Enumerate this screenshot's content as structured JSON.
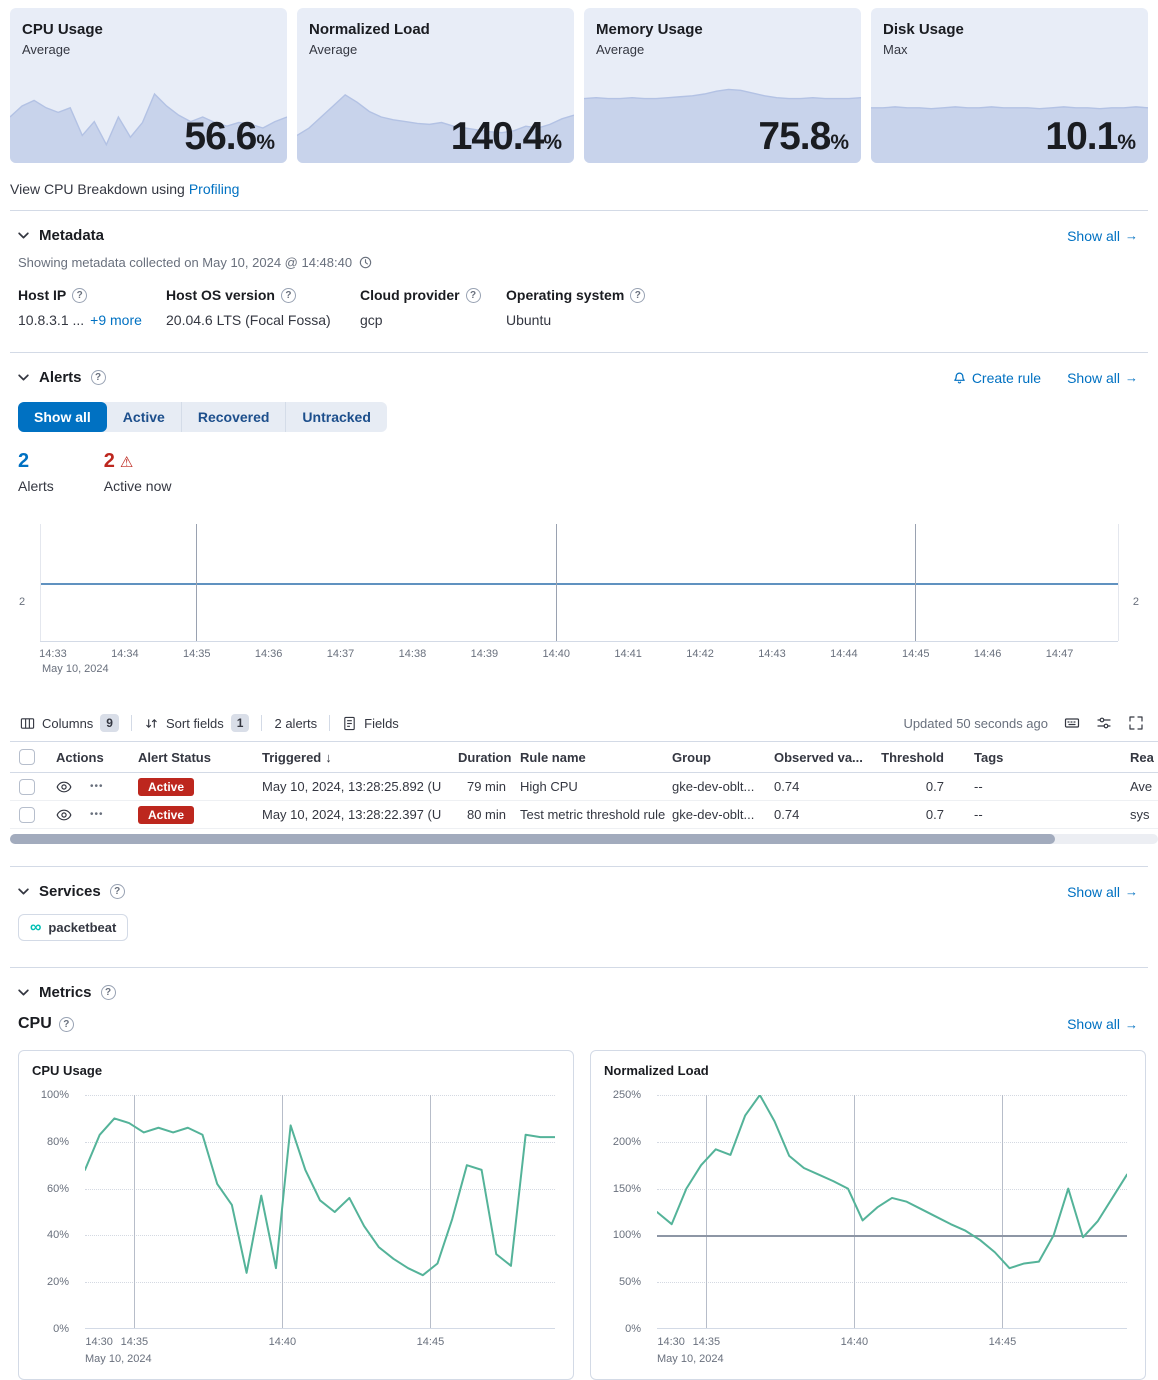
{
  "colors": {
    "primary": "#0071c2",
    "danger": "#bd271e",
    "vis_teal": "#54b399",
    "vis_blue": "#6092c0",
    "card_bg": "#e8edf7",
    "card_area": "#c8d3eb",
    "card_area_edge": "#b3c2e4"
  },
  "icons": {
    "question": "?",
    "arrow_right": "→",
    "sort_down": "↓",
    "warning": "⚠",
    "dots": "•••",
    "infinity": "∞"
  },
  "kpi_cards": [
    {
      "title": "CPU Usage",
      "subtitle": "Average",
      "value": "56.6",
      "unit": "%",
      "spark": [
        0.5,
        0.62,
        0.68,
        0.6,
        0.55,
        0.6,
        0.3,
        0.45,
        0.2,
        0.5,
        0.28,
        0.44,
        0.75,
        0.62,
        0.52,
        0.45,
        0.5,
        0.44,
        0.4,
        0.44,
        0.42,
        0.38,
        0.45,
        0.5
      ]
    },
    {
      "title": "Normalized Load",
      "subtitle": "Average",
      "value": "140.4",
      "unit": "%",
      "spark": [
        0.3,
        0.38,
        0.5,
        0.62,
        0.74,
        0.66,
        0.56,
        0.5,
        0.47,
        0.45,
        0.43,
        0.42,
        0.44,
        0.4,
        0.38,
        0.36,
        0.34,
        0.33,
        0.35,
        0.4,
        0.38,
        0.42,
        0.48,
        0.52
      ]
    },
    {
      "title": "Memory Usage",
      "subtitle": "Average",
      "value": "75.8",
      "unit": "%",
      "spark": [
        0.7,
        0.71,
        0.7,
        0.7,
        0.71,
        0.7,
        0.7,
        0.71,
        0.72,
        0.73,
        0.75,
        0.78,
        0.8,
        0.79,
        0.76,
        0.73,
        0.71,
        0.7,
        0.7,
        0.71,
        0.7,
        0.7,
        0.7,
        0.71
      ]
    },
    {
      "title": "Disk Usage",
      "subtitle": "Max",
      "value": "10.1",
      "unit": "%",
      "spark": [
        0.6,
        0.6,
        0.61,
        0.6,
        0.6,
        0.59,
        0.6,
        0.61,
        0.6,
        0.6,
        0.61,
        0.6,
        0.6,
        0.6,
        0.59,
        0.6,
        0.61,
        0.6,
        0.6,
        0.59,
        0.6,
        0.6,
        0.61,
        0.6
      ]
    }
  ],
  "profiling": {
    "prefix": "View CPU Breakdown using",
    "link": "Profiling"
  },
  "metadata": {
    "title": "Metadata",
    "show_all": "Show all",
    "note": "Showing metadata collected on May 10, 2024 @ 14:48:40",
    "fields": [
      {
        "label": "Host IP",
        "value": "10.8.3.1 ...",
        "more": "+9 more"
      },
      {
        "label": "Host OS version",
        "value": "20.04.6 LTS (Focal Fossa)"
      },
      {
        "label": "Cloud provider",
        "value": "gcp"
      },
      {
        "label": "Operating system",
        "value": "Ubuntu"
      }
    ]
  },
  "alerts": {
    "title": "Alerts",
    "create_rule": "Create rule",
    "show_all": "Show all",
    "tabs": [
      "Show all",
      "Active",
      "Recovered",
      "Untracked"
    ],
    "active_tab": "Show all",
    "stats": {
      "alerts_count": "2",
      "alerts_label": "Alerts",
      "active_count": "2",
      "active_label": "Active now"
    },
    "toolbar": {
      "columns": "Columns",
      "columns_badge": "9",
      "sort": "Sort fields",
      "sort_badge": "1",
      "count": "2 alerts",
      "fields": "Fields",
      "updated": "Updated 50 seconds ago"
    },
    "table": {
      "headers": [
        "Actions",
        "Alert Status",
        "Triggered",
        "Duration",
        "Rule name",
        "Group",
        "Observed va...",
        "Threshold",
        "Tags",
        "Rea"
      ],
      "rows": [
        {
          "status": "Active",
          "triggered": "May 10, 2024, 13:28:25.892 (U",
          "duration": "79 min",
          "rule": "High CPU",
          "group": "gke-dev-oblt...",
          "observed": "0.74",
          "threshold": "0.7",
          "tags": "--",
          "reason": "Ave"
        },
        {
          "status": "Active",
          "triggered": "May 10, 2024, 13:28:22.397 (U",
          "duration": "80 min",
          "rule": "Test metric threshold rule",
          "group": "gke-dev-oblt...",
          "observed": "0.74",
          "threshold": "0.7",
          "tags": "--",
          "reason": "sys"
        }
      ]
    }
  },
  "services": {
    "title": "Services",
    "show_all": "Show all",
    "items": [
      {
        "label": "packetbeat"
      }
    ]
  },
  "metrics": {
    "title": "Metrics",
    "subsection": "CPU",
    "show_all": "Show all"
  },
  "chart_data": [
    {
      "type": "line",
      "name": "alerts-occurrence-timeline",
      "values": [
        2,
        2
      ],
      "ylim": [
        0,
        4
      ],
      "y_axis_label": "2",
      "x_ticks": [
        "14:33",
        "14:34",
        "14:35",
        "14:36",
        "14:37",
        "14:38",
        "14:39",
        "14:40",
        "14:41",
        "14:42",
        "14:43",
        "14:44",
        "14:45",
        "14:46",
        "14:47"
      ],
      "date_label": "May 10, 2024",
      "gridlines": [
        {
          "pos": 0,
          "strong": false
        },
        {
          "pos": 0.145,
          "strong": true
        },
        {
          "pos": 0.479,
          "strong": true
        },
        {
          "pos": 0.812,
          "strong": true
        },
        {
          "pos": 1,
          "strong": false
        }
      ],
      "line_color": "#6092c0",
      "legend_position": "none",
      "grid": true
    },
    {
      "type": "line",
      "title": "CPU Usage",
      "ylabel": "%",
      "ylim": [
        0,
        100
      ],
      "y_ticks": [
        {
          "label": "0%",
          "value": 0
        },
        {
          "label": "20%",
          "value": 20
        },
        {
          "label": "40%",
          "value": 40
        },
        {
          "label": "60%",
          "value": 60
        },
        {
          "label": "80%",
          "value": 80
        },
        {
          "label": "100%",
          "value": 100
        }
      ],
      "x_ticks": [
        {
          "label": "14:30",
          "pos": 0.03,
          "grid": false
        },
        {
          "label": "14:35",
          "pos": 0.105,
          "grid": true
        },
        {
          "label": "14:40",
          "pos": 0.42,
          "grid": true
        },
        {
          "label": "14:45",
          "pos": 0.735,
          "grid": true
        }
      ],
      "date_label": "May 10, 2024",
      "values": [
        68,
        83,
        90,
        88,
        84,
        86,
        84,
        86,
        83,
        62,
        53,
        24,
        57,
        26,
        87,
        68,
        55,
        50,
        56,
        44,
        35,
        30,
        26,
        23,
        28,
        47,
        70,
        68,
        32,
        27,
        83,
        82,
        82
      ],
      "color": "#54b399",
      "grid": true
    },
    {
      "type": "line",
      "title": "Normalized Load",
      "ylabel": "%",
      "ylim": [
        0,
        250
      ],
      "threshold": 100,
      "y_ticks": [
        {
          "label": "0%",
          "value": 0
        },
        {
          "label": "50%",
          "value": 50
        },
        {
          "label": "100%",
          "value": 100
        },
        {
          "label": "150%",
          "value": 150
        },
        {
          "label": "200%",
          "value": 200
        },
        {
          "label": "250%",
          "value": 250
        }
      ],
      "x_ticks": [
        {
          "label": "14:30",
          "pos": 0.03,
          "grid": false
        },
        {
          "label": "14:35",
          "pos": 0.105,
          "grid": true
        },
        {
          "label": "14:40",
          "pos": 0.42,
          "grid": true
        },
        {
          "label": "14:45",
          "pos": 0.735,
          "grid": true
        }
      ],
      "date_label": "May 10, 2024",
      "values": [
        125,
        112,
        150,
        175,
        192,
        186,
        228,
        250,
        222,
        185,
        172,
        165,
        158,
        150,
        116,
        130,
        140,
        136,
        128,
        120,
        112,
        105,
        95,
        82,
        65,
        70,
        72,
        100,
        150,
        98,
        115,
        140,
        165
      ],
      "color": "#54b399",
      "grid": true
    }
  ]
}
